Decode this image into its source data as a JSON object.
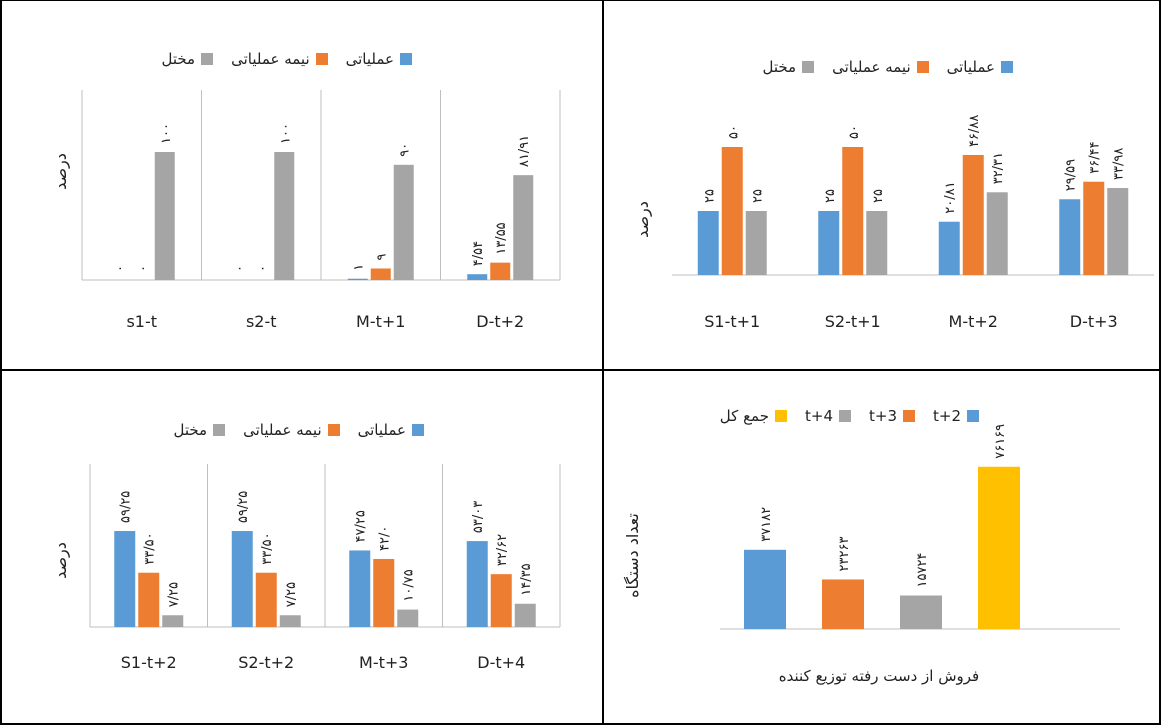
{
  "chart_data": [
    {
      "type": "bar",
      "categories": [
        "s1-t",
        "s2-t",
        "M-t+1",
        "D-t+2"
      ],
      "series": [
        {
          "name": "عملیاتی",
          "values": [
            0,
            0,
            1,
            4.54
          ],
          "labels": [
            "۰",
            "۰",
            "۱",
            "۴/۵۴"
          ]
        },
        {
          "name": "نیمه عملیاتی",
          "values": [
            0,
            0,
            9,
            13.55
          ],
          "labels": [
            "۰",
            "۰",
            "۹",
            "۱۳/۵۵"
          ]
        },
        {
          "name": "مختل",
          "values": [
            100,
            100,
            90,
            81.91
          ],
          "labels": [
            "۱۰۰",
            "۱۰۰",
            "۹۰",
            "۸۱/۹۱"
          ]
        }
      ],
      "ylabel": "درصد",
      "ylim": [
        0,
        100
      ],
      "grid": false,
      "legend": "top"
    },
    {
      "type": "bar",
      "categories": [
        "S1-t+1",
        "S2-t+1",
        "M-t+2",
        "D-t+3"
      ],
      "series": [
        {
          "name": "عملیاتی",
          "values": [
            25,
            25,
            20.81,
            29.59
          ],
          "labels": [
            "۲۵",
            "۲۵",
            "۲۰/۸۱",
            "۲۹/۵۹"
          ]
        },
        {
          "name": "نیمه عملیاتی",
          "values": [
            50,
            50,
            46.88,
            36.44
          ],
          "labels": [
            "۵۰",
            "۵۰",
            "۴۶/۸۸",
            "۳۶/۴۴"
          ]
        },
        {
          "name": "مختل",
          "values": [
            25,
            25,
            32.31,
            33.98
          ],
          "labels": [
            "۲۵",
            "۲۵",
            "۳۲/۳۱",
            "۳۳/۹۸"
          ]
        }
      ],
      "ylabel": "درصد",
      "ylim": [
        0,
        50
      ],
      "grid": false,
      "legend": "top"
    },
    {
      "type": "bar",
      "categories": [
        "S1-t+2",
        "S2-t+2",
        "M-t+3",
        "D-t+4"
      ],
      "series": [
        {
          "name": "عملیاتی",
          "values": [
            59.25,
            59.25,
            47.25,
            53.03
          ],
          "labels": [
            "۵۹/۲۵",
            "۵۹/۲۵",
            "۴۷/۲۵",
            "۵۳/۰۳"
          ]
        },
        {
          "name": "نیمه عملیاتی",
          "values": [
            33.5,
            33.5,
            42.0,
            32.62
          ],
          "labels": [
            "۳۳/۵۰",
            "۳۳/۵۰",
            "۴۲/۰",
            "۳۲/۶۲"
          ]
        },
        {
          "name": "مختل",
          "values": [
            7.25,
            7.25,
            10.75,
            14.35
          ],
          "labels": [
            "۷/۲۵",
            "۷/۲۵",
            "۱۰/۷۵",
            "۱۴/۳۵"
          ]
        }
      ],
      "ylabel": "درصد",
      "ylim": [
        0,
        60
      ],
      "grid": false,
      "legend": "top"
    },
    {
      "type": "bar",
      "categories": [
        "فروش از دست رفته توزیع کننده"
      ],
      "series": [
        {
          "name": "t+2",
          "values": [
            37182
          ],
          "labels": [
            "۳۷۱۸۲"
          ]
        },
        {
          "name": "t+3",
          "values": [
            23263
          ],
          "labels": [
            "۲۳۲۶۳"
          ]
        },
        {
          "name": "t+4",
          "values": [
            15724
          ],
          "labels": [
            "۱۵۷۲۴"
          ]
        },
        {
          "name": "جمع کل",
          "values": [
            76169
          ],
          "labels": [
            "۷۶۱۶۹"
          ]
        }
      ],
      "xlabel": "فروش از دست رفته توزیع کننده",
      "ylabel": "تعداد دستگاه",
      "ylim": [
        0,
        80000
      ],
      "grid": false,
      "legend": "top"
    }
  ],
  "colors": {
    "blue": "#5B9BD5",
    "orange": "#ED7D31",
    "gray": "#A5A5A5",
    "yellow": "#FFC000",
    "axis": "#BFBFBF",
    "border": "#000000"
  }
}
